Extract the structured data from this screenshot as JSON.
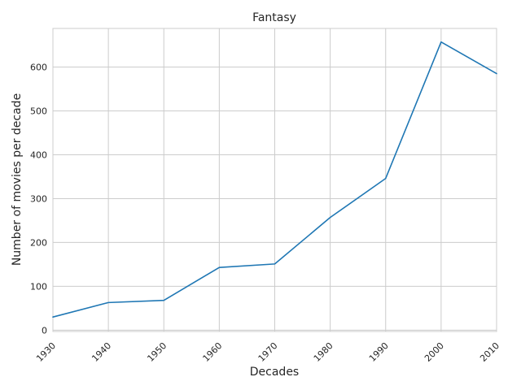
{
  "chart_data": {
    "type": "line",
    "title": "Fantasy",
    "xlabel": "Decades",
    "ylabel": "Number of movies per decade",
    "x": [
      1930,
      1940,
      1950,
      1960,
      1970,
      1980,
      1990,
      2000,
      2010
    ],
    "x_tick_labels": [
      "1930",
      "1940",
      "1950",
      "1960",
      "1970",
      "1980",
      "1990",
      "2000",
      "2010"
    ],
    "y_ticks": [
      0,
      100,
      200,
      300,
      400,
      500,
      600
    ],
    "y_tick_labels": [
      "0",
      "100",
      "200",
      "300",
      "400",
      "500",
      "600"
    ],
    "series": [
      {
        "values": [
          30,
          63,
          68,
          143,
          151,
          257,
          346,
          657,
          585
        ]
      }
    ],
    "xlim": [
      1930,
      2010
    ],
    "ylim": [
      -3,
      688
    ],
    "grid": true,
    "line_color": "#1f77b4",
    "grid_color": "#cccccc"
  }
}
